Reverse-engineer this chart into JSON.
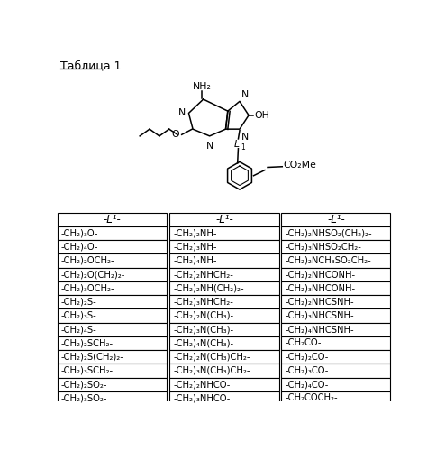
{
  "title": "Таблица 1",
  "col_header": "-L¹-",
  "col1_rows": [
    "-СH₂)₃O-",
    "-СH₂)₄O-",
    "-СH₂)₂OСH₂-",
    "-СH₂)₂O(СH₂)₂-",
    "-СH₂)₃OСH₂-",
    "-СH₂)₂S-",
    "-СH₂)₃S-",
    "-СH₂)₄S-",
    "-СH₂)₂SСH₂-",
    "-СH₂)₂S(СH₂)₂-",
    "-СH₂)₃SСH₂-",
    "-СH₂)₂SO₂-",
    "-СH₂)₃SO₂-"
  ],
  "col2_rows": [
    "-СH₂)₂NH-",
    "-СH₂)₃NH-",
    "-СH₂)₄NH-",
    "-СH₂)₂NHСH₂-",
    "-СH₂)₂NH(СH₂)₂-",
    "-СH₂)₃NHСH₂-",
    "-СH₂)₂N(СH₃)-",
    "-СH₂)₃N(СH₃)-",
    "-СH₂)₄N(СH₃)-",
    "-СH₂)₂N(СH₃)СH₂-",
    "-СH₂)₃N(СH₃)СH₂-",
    "-СH₂)₂NHCO-",
    "-СH₂)₃NHCO-"
  ],
  "col3_rows": [
    "-СH₂)₂NHSO₂(СH₂)₂-",
    "-СH₂)₃NHSO₂СH₂-",
    "-СH₂)₂NСH₃SO₂СH₂-",
    "-СH₂)₂NHCONH-",
    "-СH₂)₃NHCONH-",
    "-СH₂)₂NHCSNH-",
    "-СH₂)₃NHCSNH-",
    "-СH₂)₄NHCSNH-",
    "-СH₂CO-",
    "-СH₂)₂CO-",
    "-СH₂)₃CO-",
    "-СH₂)₄CO-",
    "-СH₂COСH₂-"
  ],
  "background_color": "#ffffff",
  "text_color": "#000000",
  "font_size": 7.2,
  "header_font_size": 8.5
}
